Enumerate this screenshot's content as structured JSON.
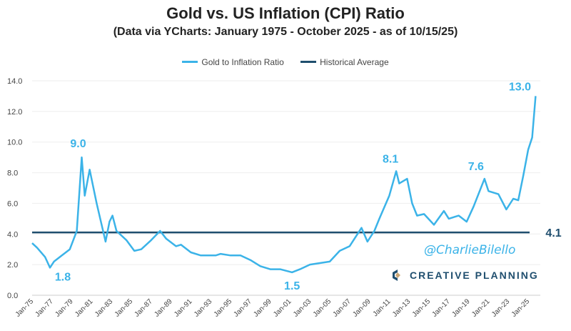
{
  "chart_data": {
    "type": "line",
    "title": "Gold vs. US Inflation (CPI) Ratio",
    "subtitle": "(Data via YCharts: January 1975 - October 2025 - as of 10/15/25)",
    "ylim": [
      0,
      14
    ],
    "yticks": [
      "0.0",
      "2.0",
      "4.0",
      "6.0",
      "8.0",
      "10.0",
      "12.0",
      "14.0"
    ],
    "xtick_labels": [
      "Jan-75",
      "Jan-77",
      "Jan-79",
      "Jan-81",
      "Jan-83",
      "Jan-85",
      "Jan-87",
      "Jan-89",
      "Jan-91",
      "Jan-93",
      "Jan-95",
      "Jan-97",
      "Jan-99",
      "Jan-01",
      "Jan-03",
      "Jan-05",
      "Jan-07",
      "Jan-09",
      "Jan-11",
      "Jan-13",
      "Jan-15",
      "Jan-17",
      "Jan-19",
      "Jan-21",
      "Jan-23",
      "Jan-25"
    ],
    "grid": "horizontal",
    "legend_position": "top",
    "series": [
      {
        "name": "Gold to Inflation Ratio",
        "color": "#3bb3e8",
        "x": [
          1975,
          1975.5,
          1976.3,
          1976.8,
          1977.2,
          1978,
          1978.8,
          1979.5,
          1980.0,
          1980.3,
          1980.8,
          1981.5,
          1982.4,
          1982.8,
          1983.1,
          1983.5,
          1984.5,
          1985.3,
          1986,
          1987,
          1987.9,
          1988.5,
          1989.5,
          1990,
          1991,
          1992,
          1993.5,
          1994,
          1995,
          1996,
          1997,
          1998,
          1999,
          2000,
          2001.2,
          2002,
          2003,
          2004,
          2005,
          2006,
          2007,
          2008.2,
          2008.8,
          2009.5,
          2010,
          2011,
          2011.7,
          2012,
          2012.8,
          2013.3,
          2013.8,
          2014.5,
          2015.5,
          2016.5,
          2017,
          2018,
          2018.8,
          2019.5,
          2020.6,
          2021,
          2022,
          2022.8,
          2023.5,
          2024,
          2024.5,
          2025,
          2025.4,
          2025.75
        ],
        "y": [
          3.4,
          3.1,
          2.5,
          1.8,
          2.2,
          2.6,
          3.0,
          4.2,
          9.0,
          6.5,
          8.2,
          6.0,
          3.5,
          4.8,
          5.2,
          4.2,
          3.6,
          2.9,
          3.0,
          3.6,
          4.2,
          3.7,
          3.2,
          3.3,
          2.8,
          2.6,
          2.6,
          2.7,
          2.6,
          2.6,
          2.3,
          1.9,
          1.7,
          1.7,
          1.5,
          1.7,
          2.0,
          2.1,
          2.2,
          2.9,
          3.2,
          4.4,
          3.5,
          4.2,
          5.0,
          6.5,
          8.1,
          7.3,
          7.6,
          6.0,
          5.2,
          5.3,
          4.6,
          5.5,
          5.0,
          5.2,
          4.8,
          5.8,
          7.6,
          6.8,
          6.6,
          5.6,
          6.3,
          6.2,
          7.8,
          9.5,
          10.3,
          13.0
        ]
      },
      {
        "name": "Historical Average",
        "color": "#1f4e6e",
        "y_constant": 4.1
      }
    ],
    "annotations": [
      {
        "text": "1.8",
        "x": 1976.8,
        "y": 1.8
      },
      {
        "text": "9.0",
        "x": 1980.0,
        "y": 9.0
      },
      {
        "text": "1.5",
        "x": 2001.2,
        "y": 1.5
      },
      {
        "text": "8.1",
        "x": 2011.7,
        "y": 8.1
      },
      {
        "text": "7.6",
        "x": 2020.6,
        "y": 7.6
      },
      {
        "text": "13.0",
        "x": 2025.75,
        "y": 13.0
      },
      {
        "text": "4.1",
        "x": 2025.75,
        "y": 4.1
      }
    ]
  },
  "watermark": "@CharlieBilello",
  "logo": "CREATIVE PLANNING"
}
